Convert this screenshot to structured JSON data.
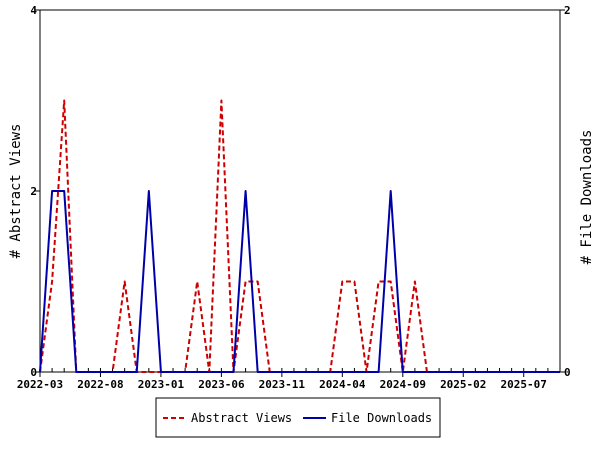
{
  "chart_data": {
    "type": "line",
    "title": "",
    "x_ticks": [
      "2022-03",
      "2022-08",
      "2023-01",
      "2023-06",
      "2023-11",
      "2024-04",
      "2024-09",
      "2025-02",
      "2025-07"
    ],
    "y_left_label": "# Abstract Views",
    "y_right_label": "# File Downloads",
    "y_left_ticks": [
      "0",
      "2",
      "4"
    ],
    "y_right_ticks": [
      "0",
      "2"
    ],
    "y_left_lim": [
      0,
      4
    ],
    "y_right_lim": [
      0,
      2
    ],
    "x_range": [
      "2022-03",
      "2025-10"
    ],
    "grid": false,
    "legend_position": "bottom",
    "series": [
      {
        "name": "Abstract Views",
        "axis": "left",
        "color": "#cc0000",
        "dash": true,
        "points": [
          [
            "2022-03",
            0
          ],
          [
            "2022-04",
            1
          ],
          [
            "2022-05",
            3
          ],
          [
            "2022-06",
            0
          ],
          [
            "2022-07",
            0
          ],
          [
            "2022-08",
            0
          ],
          [
            "2022-09",
            0
          ],
          [
            "2022-10",
            1
          ],
          [
            "2022-11",
            0
          ],
          [
            "2022-12",
            0
          ],
          [
            "2023-01",
            0
          ],
          [
            "2023-02",
            0
          ],
          [
            "2023-03",
            0
          ],
          [
            "2023-04",
            1
          ],
          [
            "2023-05",
            0
          ],
          [
            "2023-06",
            3
          ],
          [
            "2023-07",
            0
          ],
          [
            "2023-08",
            1
          ],
          [
            "2023-09",
            1
          ],
          [
            "2023-10",
            0
          ],
          [
            "2023-11",
            0
          ],
          [
            "2023-12",
            0
          ],
          [
            "2024-01",
            0
          ],
          [
            "2024-02",
            0
          ],
          [
            "2024-03",
            0
          ],
          [
            "2024-04",
            1
          ],
          [
            "2024-05",
            1
          ],
          [
            "2024-06",
            0
          ],
          [
            "2024-07",
            1
          ],
          [
            "2024-08",
            1
          ],
          [
            "2024-09",
            0
          ],
          [
            "2024-10",
            1
          ],
          [
            "2024-11",
            0
          ],
          [
            "2024-12",
            0
          ],
          [
            "2025-01",
            0
          ],
          [
            "2025-02",
            0
          ],
          [
            "2025-03",
            0
          ],
          [
            "2025-04",
            0
          ],
          [
            "2025-05",
            0
          ],
          [
            "2025-06",
            0
          ],
          [
            "2025-07",
            0
          ],
          [
            "2025-08",
            0
          ],
          [
            "2025-09",
            0
          ],
          [
            "2025-10",
            0
          ]
        ]
      },
      {
        "name": "File Downloads",
        "axis": "right",
        "color": "#0000aa",
        "dash": false,
        "points": [
          [
            "2022-03",
            0
          ],
          [
            "2022-04",
            1
          ],
          [
            "2022-05",
            1
          ],
          [
            "2022-06",
            0
          ],
          [
            "2022-07",
            0
          ],
          [
            "2022-08",
            0
          ],
          [
            "2022-09",
            0
          ],
          [
            "2022-10",
            0
          ],
          [
            "2022-11",
            0
          ],
          [
            "2022-12",
            1
          ],
          [
            "2023-01",
            0
          ],
          [
            "2023-02",
            0
          ],
          [
            "2023-03",
            0
          ],
          [
            "2023-04",
            0
          ],
          [
            "2023-05",
            0
          ],
          [
            "2023-06",
            0
          ],
          [
            "2023-07",
            0
          ],
          [
            "2023-08",
            1
          ],
          [
            "2023-09",
            0
          ],
          [
            "2023-10",
            0
          ],
          [
            "2023-11",
            0
          ],
          [
            "2023-12",
            0
          ],
          [
            "2024-01",
            0
          ],
          [
            "2024-02",
            0
          ],
          [
            "2024-03",
            0
          ],
          [
            "2024-04",
            0
          ],
          [
            "2024-05",
            0
          ],
          [
            "2024-06",
            0
          ],
          [
            "2024-07",
            0
          ],
          [
            "2024-08",
            1
          ],
          [
            "2024-09",
            0
          ],
          [
            "2024-10",
            0
          ],
          [
            "2024-11",
            0
          ],
          [
            "2024-12",
            0
          ],
          [
            "2025-01",
            0
          ],
          [
            "2025-02",
            0
          ],
          [
            "2025-03",
            0
          ],
          [
            "2025-04",
            0
          ],
          [
            "2025-05",
            0
          ],
          [
            "2025-06",
            0
          ],
          [
            "2025-07",
            0
          ],
          [
            "2025-08",
            0
          ],
          [
            "2025-09",
            0
          ],
          [
            "2025-10",
            0
          ]
        ]
      }
    ]
  }
}
